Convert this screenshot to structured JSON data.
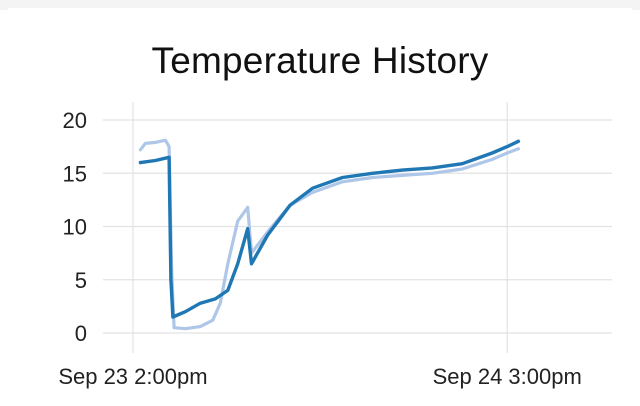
{
  "chart_data": {
    "type": "line",
    "title": "Temperature History",
    "xlabel": "",
    "ylabel": "",
    "ylim": [
      0,
      20
    ],
    "yticks": [
      0,
      5,
      10,
      15,
      20
    ],
    "xlim": [
      "2023-09-23T12:00",
      "2023-09-24T22:00"
    ],
    "xticks": [
      {
        "label": "Sep 23 2:00pm",
        "t": "2023-09-23T14:00"
      },
      {
        "label": "Sep 24 3:00pm",
        "t": "2023-09-24T15:00"
      }
    ],
    "grid": true,
    "legend": "none",
    "series": [
      {
        "color": "#aec7e8",
        "points": [
          [
            "2023-09-23T14:30",
            17.2
          ],
          [
            "2023-09-23T14:50",
            17.8
          ],
          [
            "2023-09-23T15:30",
            17.9
          ],
          [
            "2023-09-23T16:10",
            18.1
          ],
          [
            "2023-09-23T16:25",
            17.5
          ],
          [
            "2023-09-23T16:35",
            6.0
          ],
          [
            "2023-09-23T16:45",
            0.5
          ],
          [
            "2023-09-23T17:30",
            0.4
          ],
          [
            "2023-09-23T18:30",
            0.6
          ],
          [
            "2023-09-23T19:20",
            1.2
          ],
          [
            "2023-09-23T19:50",
            2.8
          ],
          [
            "2023-09-23T20:20",
            6.5
          ],
          [
            "2023-09-23T21:00",
            10.5
          ],
          [
            "2023-09-23T21:40",
            11.8
          ],
          [
            "2023-09-23T21:55",
            7.5
          ],
          [
            "2023-09-23T23:00",
            9.5
          ],
          [
            "2023-09-24T00:30",
            12.0
          ],
          [
            "2023-09-24T02:00",
            13.2
          ],
          [
            "2023-09-24T04:00",
            14.2
          ],
          [
            "2023-09-24T06:00",
            14.6
          ],
          [
            "2023-09-24T08:00",
            14.8
          ],
          [
            "2023-09-24T10:00",
            15.0
          ],
          [
            "2023-09-24T12:00",
            15.4
          ],
          [
            "2023-09-24T14:00",
            16.3
          ],
          [
            "2023-09-24T15:00",
            16.9
          ],
          [
            "2023-09-24T15:45",
            17.3
          ]
        ]
      },
      {
        "color": "#1f77b4",
        "points": [
          [
            "2023-09-23T14:30",
            16.0
          ],
          [
            "2023-09-23T15:30",
            16.2
          ],
          [
            "2023-09-23T16:25",
            16.5
          ],
          [
            "2023-09-23T16:32",
            5.0
          ],
          [
            "2023-09-23T16:40",
            1.5
          ],
          [
            "2023-09-23T17:30",
            2.0
          ],
          [
            "2023-09-23T18:30",
            2.8
          ],
          [
            "2023-09-23T19:30",
            3.2
          ],
          [
            "2023-09-23T20:20",
            4.0
          ],
          [
            "2023-09-23T21:00",
            6.5
          ],
          [
            "2023-09-23T21:40",
            9.8
          ],
          [
            "2023-09-23T21:55",
            6.5
          ],
          [
            "2023-09-23T23:00",
            9.2
          ],
          [
            "2023-09-24T00:30",
            12.0
          ],
          [
            "2023-09-24T02:00",
            13.6
          ],
          [
            "2023-09-24T04:00",
            14.6
          ],
          [
            "2023-09-24T06:00",
            15.0
          ],
          [
            "2023-09-24T08:00",
            15.3
          ],
          [
            "2023-09-24T10:00",
            15.5
          ],
          [
            "2023-09-24T12:00",
            15.9
          ],
          [
            "2023-09-24T14:00",
            16.9
          ],
          [
            "2023-09-24T15:00",
            17.5
          ],
          [
            "2023-09-24T15:45",
            18.0
          ]
        ]
      }
    ]
  }
}
